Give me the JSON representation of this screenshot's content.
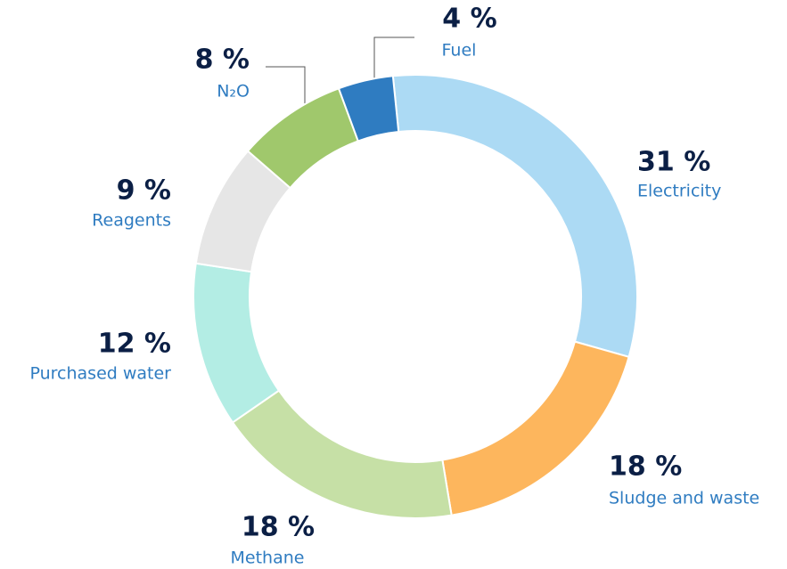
{
  "chart_data": {
    "type": "donut",
    "categories": [
      "Electricity",
      "Sludge and waste",
      "Methane",
      "Purchased water",
      "Reagents",
      "N₂O",
      "Fuel"
    ],
    "values": [
      31,
      18,
      18,
      12,
      9,
      8,
      4
    ],
    "value_labels": [
      "31 %",
      "18 %",
      "18 %",
      "12 %",
      "9 %",
      "8 %",
      "4 %"
    ],
    "colors": [
      "#acdaf4",
      "#fdb65d",
      "#c6e0a6",
      "#b3ede4",
      "#e6e6e6",
      "#a0c86c",
      "#2f7cc1"
    ]
  }
}
